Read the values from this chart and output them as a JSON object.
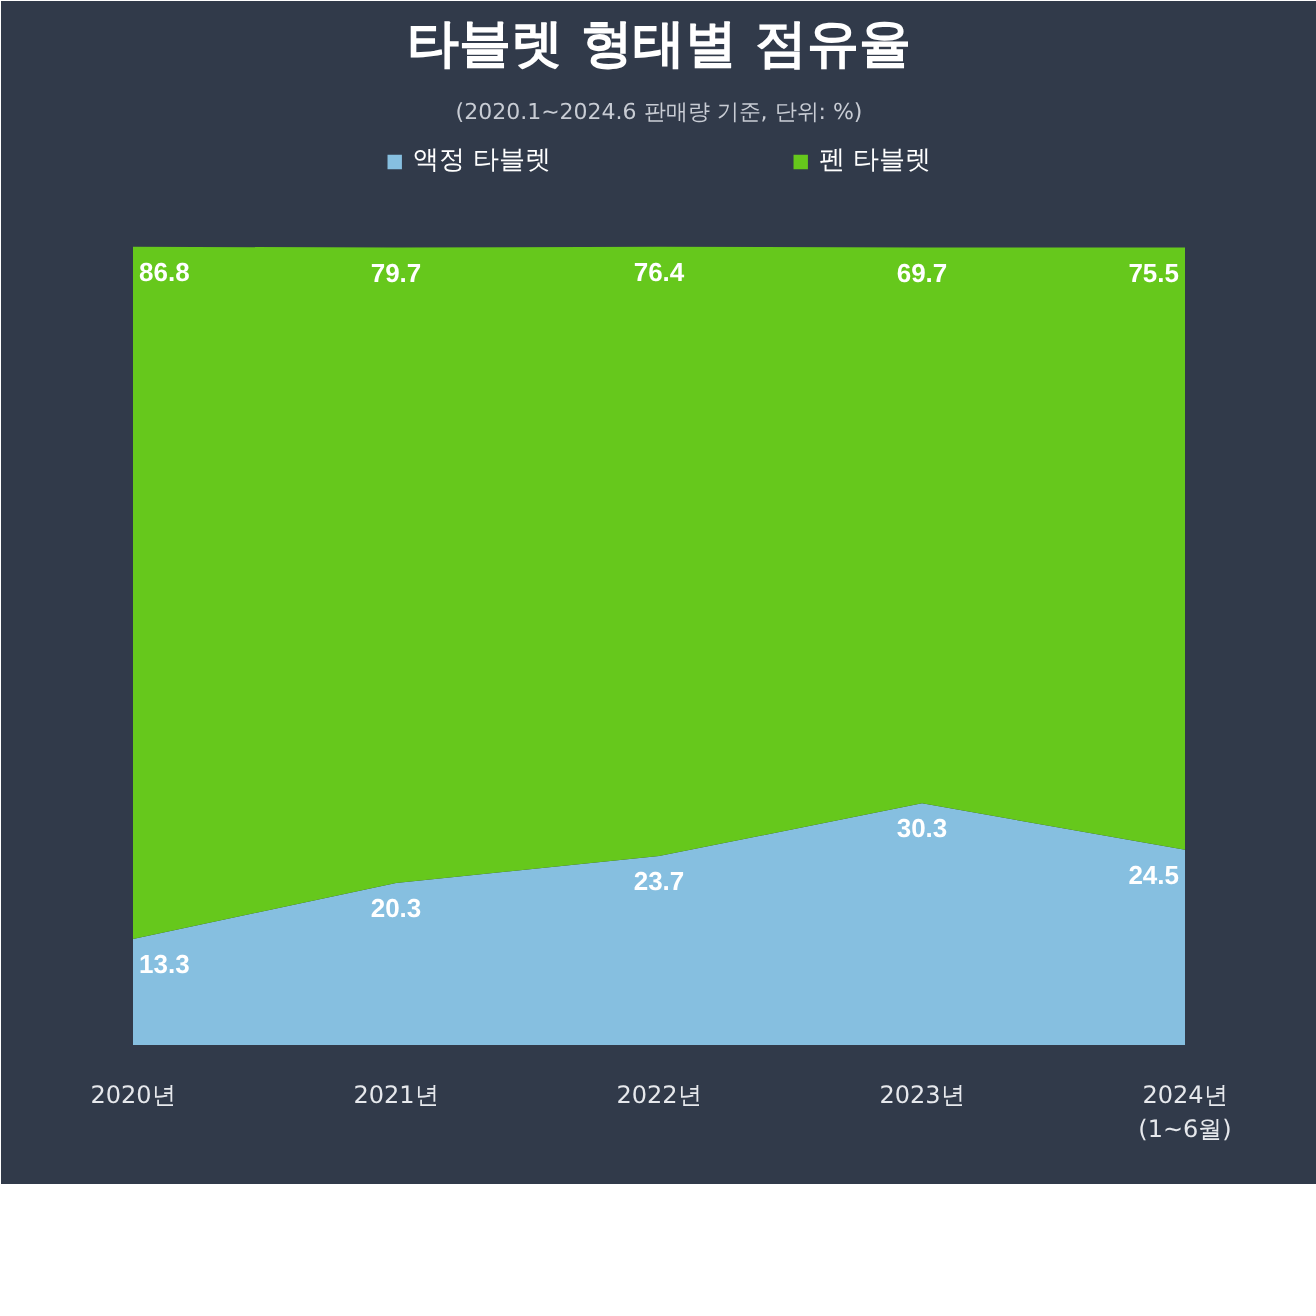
{
  "chart_data": {
    "type": "area",
    "stacked": true,
    "title": "타블렛 형태별 점유율",
    "annotations": [
      "(2020.1~2024.6 판매량 기준, 단위: %)"
    ],
    "categories": [
      "2020년",
      "2021년",
      "2022년",
      "2023년",
      "2024년\n(1~6월)"
    ],
    "series": [
      {
        "name": "액정 타블렛",
        "color": "#86bfe0",
        "values": [
          13.3,
          20.3,
          23.7,
          30.3,
          24.5
        ]
      },
      {
        "name": "펜 타블렛",
        "color": "#66c81c",
        "values": [
          86.8,
          79.7,
          76.4,
          69.7,
          75.5
        ]
      }
    ],
    "data_labels": true,
    "legend": "top",
    "grid": false
  }
}
